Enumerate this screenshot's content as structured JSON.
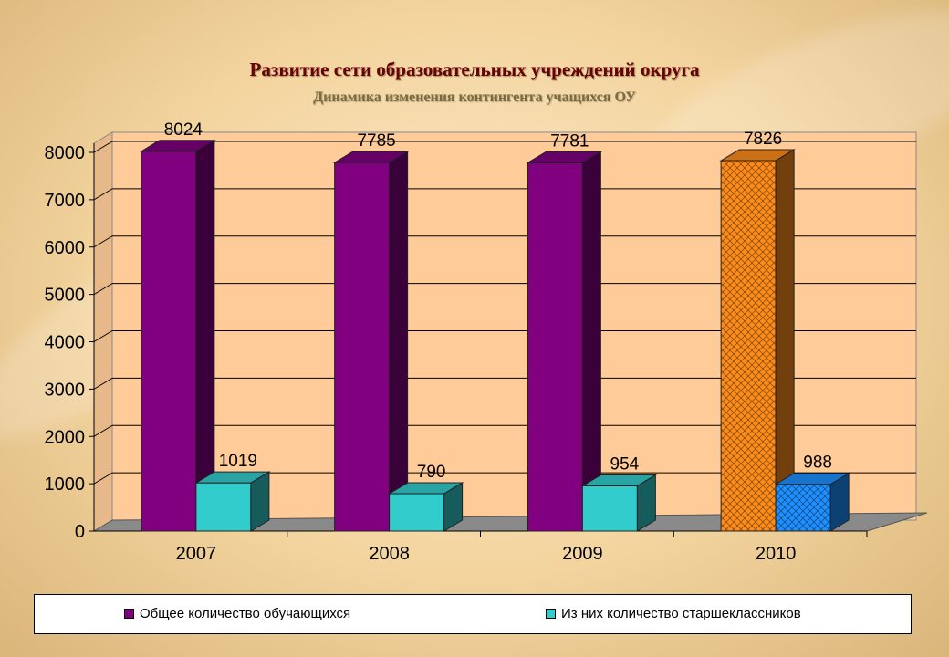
{
  "title": "Развитие сети образовательных учреждений округа",
  "subtitle": "Динамика изменения контингента учащихся ОУ",
  "colors": {
    "series1": "#800080",
    "series2": "#33cccc",
    "highlight1": "#ff8c1a",
    "highlight2": "#1e90ff",
    "plot_bg": "#ffcc99"
  },
  "chart_data": {
    "type": "bar",
    "categories": [
      "2007",
      "2008",
      "2009",
      "2010"
    ],
    "series": [
      {
        "name": "Общее количество обучающихся",
        "values": [
          8024,
          7785,
          7781,
          7826
        ]
      },
      {
        "name": "Из них количество старшеклассников",
        "values": [
          1019,
          790,
          954,
          988
        ]
      }
    ],
    "ylim": [
      0,
      8000
    ],
    "yticks": [
      0,
      1000,
      2000,
      3000,
      4000,
      5000,
      6000,
      7000,
      8000
    ],
    "grid": true,
    "legend_position": "bottom",
    "highlighted_category": "2010"
  }
}
